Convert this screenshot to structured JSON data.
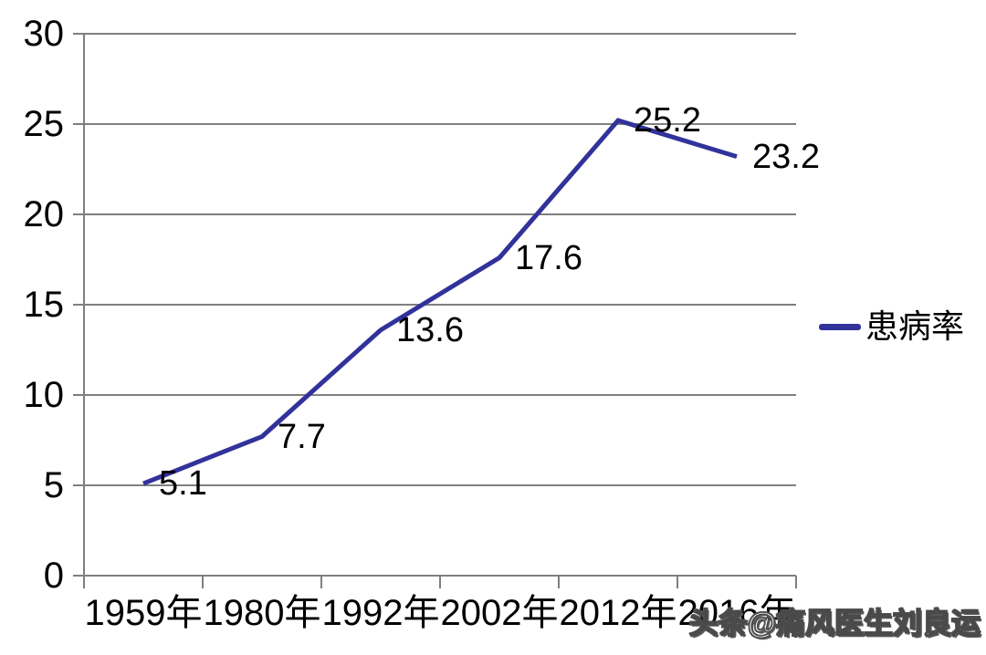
{
  "chart_data": {
    "type": "line",
    "categories": [
      "1959年",
      "1980年",
      "1992年",
      "2002年",
      "2012年",
      "2016年"
    ],
    "series": [
      {
        "name": "患病率",
        "values": [
          5.1,
          7.7,
          13.6,
          17.6,
          25.2,
          23.2
        ]
      }
    ],
    "data_labels": [
      "5.1",
      "7.7",
      "13.6",
      "17.6",
      "25.2",
      "23.2"
    ],
    "title": "",
    "xlabel": "",
    "ylabel": "",
    "ylim": [
      0,
      30
    ],
    "ytick_step": 5,
    "yticks": [
      "0",
      "5",
      "10",
      "15",
      "20",
      "25",
      "30"
    ],
    "grid": "horizontal",
    "legend_position": "right-middle",
    "line_color": "#32329B",
    "grid_color": "#7F7F7F",
    "text_color": "#000000"
  },
  "legend": {
    "label": "患病率"
  },
  "watermark": {
    "text": "头条@痛风医生刘良运"
  }
}
